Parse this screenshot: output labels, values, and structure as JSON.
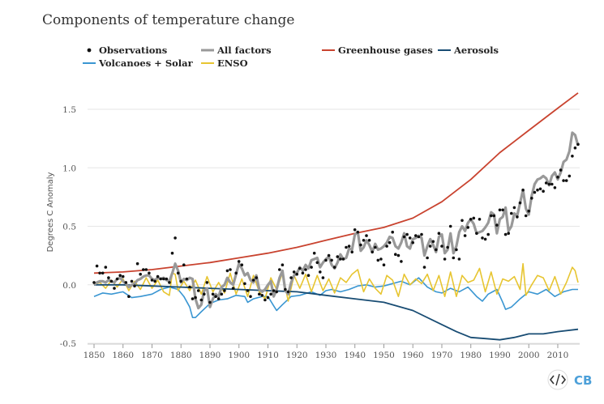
{
  "title": "Components of temperature change",
  "chart_data": {
    "type": "line",
    "title": "Components of temperature change",
    "ylabel": "Degrees C Anomaly",
    "xlabel": "",
    "xlim": [
      1850,
      2017
    ],
    "ylim": [
      -0.5,
      1.65
    ],
    "x_ticks": [
      1850,
      1860,
      1870,
      1880,
      1890,
      1900,
      1910,
      1920,
      1930,
      1940,
      1950,
      1960,
      1970,
      1980,
      1990,
      2000,
      2010
    ],
    "y_ticks": [
      -0.5,
      0.0,
      0.5,
      1.0,
      1.5
    ],
    "y_tick_labels": [
      "-0.5",
      "0.0",
      "0.5",
      "1.0",
      "1.5"
    ],
    "grid": "horizontal",
    "legend_position": "top-left",
    "series": [
      {
        "key": "observations",
        "name": "Observations",
        "style": "dots",
        "color": "#111111",
        "x": [
          1850,
          1851,
          1852,
          1853,
          1854,
          1855,
          1856,
          1857,
          1858,
          1859,
          1860,
          1861,
          1862,
          1863,
          1864,
          1865,
          1866,
          1867,
          1868,
          1869,
          1870,
          1871,
          1872,
          1873,
          1874,
          1875,
          1876,
          1877,
          1878,
          1879,
          1880,
          1881,
          1882,
          1883,
          1884,
          1885,
          1886,
          1887,
          1888,
          1889,
          1890,
          1891,
          1892,
          1893,
          1894,
          1895,
          1896,
          1897,
          1898,
          1899,
          1900,
          1901,
          1902,
          1903,
          1904,
          1905,
          1906,
          1907,
          1908,
          1909,
          1910,
          1911,
          1912,
          1913,
          1914,
          1915,
          1916,
          1917,
          1918,
          1919,
          1920,
          1921,
          1922,
          1923,
          1924,
          1925,
          1926,
          1927,
          1928,
          1929,
          1930,
          1931,
          1932,
          1933,
          1934,
          1935,
          1936,
          1937,
          1938,
          1939,
          1940,
          1941,
          1942,
          1943,
          1944,
          1945,
          1946,
          1947,
          1948,
          1949,
          1950,
          1951,
          1952,
          1953,
          1954,
          1955,
          1956,
          1957,
          1958,
          1959,
          1960,
          1961,
          1962,
          1963,
          1964,
          1965,
          1966,
          1967,
          1968,
          1969,
          1970,
          1971,
          1972,
          1973,
          1974,
          1975,
          1976,
          1977,
          1978,
          1979,
          1980,
          1981,
          1982,
          1983,
          1984,
          1985,
          1986,
          1987,
          1988,
          1989,
          1990,
          1991,
          1992,
          1993,
          1994,
          1995,
          1996,
          1997,
          1998,
          1999,
          2000,
          2001,
          2002,
          2003,
          2004,
          2005,
          2006,
          2007,
          2008,
          2009,
          2010,
          2011,
          2012,
          2013,
          2014,
          2015,
          2016,
          2017
        ],
        "y": [
          0.02,
          0.16,
          0.1,
          0.1,
          0.15,
          0.06,
          0.03,
          -0.03,
          0.05,
          0.08,
          0.07,
          0.02,
          -0.1,
          0.03,
          -0.01,
          0.18,
          0.09,
          0.13,
          0.13,
          0.1,
          0.04,
          0.03,
          0.07,
          0.05,
          0.05,
          0.05,
          0.02,
          0.27,
          0.4,
          0.1,
          0.03,
          0.17,
          0.05,
          -0.02,
          -0.12,
          -0.11,
          -0.05,
          -0.13,
          -0.08,
          0.02,
          -0.15,
          -0.08,
          -0.1,
          -0.12,
          -0.08,
          -0.05,
          0.12,
          0.13,
          -0.03,
          0.1,
          0.2,
          0.17,
          0.01,
          -0.05,
          -0.1,
          0.04,
          0.06,
          -0.08,
          -0.09,
          -0.13,
          -0.11,
          -0.08,
          -0.05,
          -0.06,
          0.13,
          0.17,
          -0.04,
          -0.06,
          0.06,
          0.11,
          0.09,
          0.14,
          0.1,
          0.13,
          0.08,
          0.15,
          0.27,
          0.19,
          0.11,
          0.06,
          0.21,
          0.25,
          0.21,
          0.15,
          0.24,
          0.22,
          0.22,
          0.32,
          0.33,
          0.28,
          0.47,
          0.45,
          0.34,
          0.38,
          0.42,
          0.38,
          0.28,
          0.32,
          0.21,
          0.22,
          0.17,
          0.33,
          0.36,
          0.45,
          0.26,
          0.25,
          0.2,
          0.41,
          0.43,
          0.4,
          0.36,
          0.42,
          0.41,
          0.43,
          0.15,
          0.23,
          0.33,
          0.37,
          0.3,
          0.44,
          0.33,
          0.22,
          0.32,
          0.5,
          0.23,
          0.3,
          0.22,
          0.55,
          0.42,
          0.49,
          0.56,
          0.57,
          0.44,
          0.56,
          0.4,
          0.39,
          0.43,
          0.59,
          0.59,
          0.51,
          0.64,
          0.64,
          0.43,
          0.44,
          0.61,
          0.66,
          0.58,
          0.7,
          0.81,
          0.59,
          0.63,
          0.74,
          0.79,
          0.81,
          0.82,
          0.8,
          0.87,
          0.86,
          0.86,
          0.83,
          0.92,
          0.98,
          0.89,
          0.89,
          0.93,
          1.1,
          1.17,
          1.2
        ]
      },
      {
        "key": "all_factors",
        "name": "All factors",
        "style": "line",
        "color": "#999999",
        "x": [
          1850,
          1851,
          1852,
          1853,
          1854,
          1855,
          1856,
          1857,
          1858,
          1859,
          1860,
          1861,
          1862,
          1863,
          1864,
          1865,
          1866,
          1867,
          1868,
          1869,
          1870,
          1871,
          1872,
          1873,
          1874,
          1875,
          1876,
          1877,
          1878,
          1879,
          1880,
          1881,
          1882,
          1883,
          1884,
          1885,
          1886,
          1887,
          1888,
          1889,
          1890,
          1891,
          1892,
          1893,
          1894,
          1895,
          1896,
          1897,
          1898,
          1899,
          1900,
          1901,
          1902,
          1903,
          1904,
          1905,
          1906,
          1907,
          1908,
          1909,
          1910,
          1911,
          1912,
          1913,
          1914,
          1915,
          1916,
          1917,
          1918,
          1919,
          1920,
          1921,
          1922,
          1923,
          1924,
          1925,
          1926,
          1927,
          1928,
          1929,
          1930,
          1931,
          1932,
          1933,
          1934,
          1935,
          1936,
          1937,
          1938,
          1939,
          1940,
          1941,
          1942,
          1943,
          1944,
          1945,
          1946,
          1947,
          1948,
          1949,
          1950,
          1951,
          1952,
          1953,
          1954,
          1955,
          1956,
          1957,
          1958,
          1959,
          1960,
          1961,
          1962,
          1963,
          1964,
          1965,
          1966,
          1967,
          1968,
          1969,
          1970,
          1971,
          1972,
          1973,
          1974,
          1975,
          1976,
          1977,
          1978,
          1979,
          1980,
          1981,
          1982,
          1983,
          1984,
          1985,
          1986,
          1987,
          1988,
          1989,
          1990,
          1991,
          1992,
          1993,
          1994,
          1995,
          1996,
          1997,
          1998,
          1999,
          2000,
          2001,
          2002,
          2003,
          2004,
          2005,
          2006,
          2007,
          2008,
          2009,
          2010,
          2011,
          2012,
          2013,
          2014,
          2015,
          2016,
          2017
        ],
        "y": [
          0.0,
          0.02,
          0.03,
          0.03,
          0.02,
          0.04,
          0.03,
          0.02,
          0.05,
          0.06,
          0.03,
          0.01,
          -0.02,
          0.0,
          0.01,
          0.04,
          0.05,
          0.07,
          0.08,
          0.08,
          0.05,
          0.04,
          0.06,
          0.05,
          0.06,
          0.04,
          0.03,
          0.1,
          0.18,
          0.12,
          0.02,
          0.05,
          0.04,
          0.06,
          0.05,
          -0.12,
          -0.2,
          -0.17,
          -0.05,
          -0.03,
          -0.19,
          -0.12,
          -0.08,
          -0.1,
          -0.02,
          0.0,
          0.06,
          0.02,
          0.0,
          0.09,
          0.18,
          0.14,
          0.08,
          0.1,
          0.04,
          0.02,
          0.08,
          -0.04,
          -0.06,
          -0.04,
          0.0,
          0.03,
          -0.1,
          -0.04,
          0.06,
          0.12,
          -0.05,
          -0.08,
          0.02,
          0.08,
          0.1,
          0.15,
          0.12,
          0.17,
          0.14,
          0.21,
          0.22,
          0.23,
          0.15,
          0.19,
          0.22,
          0.24,
          0.17,
          0.14,
          0.19,
          0.26,
          0.22,
          0.23,
          0.31,
          0.3,
          0.43,
          0.45,
          0.29,
          0.32,
          0.38,
          0.34,
          0.28,
          0.35,
          0.3,
          0.31,
          0.33,
          0.36,
          0.41,
          0.4,
          0.33,
          0.31,
          0.36,
          0.44,
          0.33,
          0.31,
          0.39,
          0.4,
          0.42,
          0.4,
          0.25,
          0.33,
          0.39,
          0.34,
          0.28,
          0.41,
          0.43,
          0.27,
          0.3,
          0.44,
          0.27,
          0.33,
          0.45,
          0.5,
          0.46,
          0.53,
          0.56,
          0.52,
          0.44,
          0.45,
          0.46,
          0.49,
          0.53,
          0.62,
          0.6,
          0.44,
          0.56,
          0.58,
          0.66,
          0.46,
          0.5,
          0.61,
          0.59,
          0.7,
          0.81,
          0.65,
          0.6,
          0.76,
          0.86,
          0.9,
          0.91,
          0.93,
          0.91,
          0.85,
          0.93,
          0.96,
          0.9,
          0.96,
          1.05,
          1.07,
          1.14,
          1.3,
          1.28,
          1.19
        ]
      },
      {
        "key": "greenhouse",
        "name": "Greenhouse gases",
        "style": "line",
        "color": "#c9432f",
        "x": [
          1850,
          1860,
          1870,
          1880,
          1890,
          1900,
          1910,
          1920,
          1930,
          1940,
          1950,
          1960,
          1970,
          1980,
          1990,
          2000,
          2010,
          2017
        ],
        "y": [
          0.1,
          0.11,
          0.13,
          0.16,
          0.19,
          0.23,
          0.27,
          0.32,
          0.38,
          0.44,
          0.49,
          0.57,
          0.71,
          0.9,
          1.13,
          1.32,
          1.51,
          1.64
        ]
      },
      {
        "key": "aerosols",
        "name": "Aerosols",
        "style": "line",
        "color": "#184c73",
        "x": [
          1850,
          1860,
          1870,
          1880,
          1890,
          1900,
          1910,
          1920,
          1930,
          1940,
          1950,
          1960,
          1970,
          1975,
          1980,
          1985,
          1990,
          1995,
          2000,
          2005,
          2010,
          2017
        ],
        "y": [
          0.0,
          0.0,
          -0.01,
          -0.02,
          -0.03,
          -0.04,
          -0.05,
          -0.06,
          -0.09,
          -0.12,
          -0.15,
          -0.22,
          -0.34,
          -0.4,
          -0.45,
          -0.46,
          -0.47,
          -0.45,
          -0.42,
          -0.42,
          -0.4,
          -0.38
        ]
      },
      {
        "key": "volcanoes_solar",
        "name": "Volcanoes + Solar",
        "style": "line",
        "color": "#3a96d2",
        "x": [
          1850,
          1853,
          1856,
          1860,
          1863,
          1866,
          1870,
          1873,
          1876,
          1879,
          1881,
          1883,
          1884,
          1885,
          1887,
          1890,
          1893,
          1896,
          1899,
          1902,
          1903,
          1905,
          1908,
          1910,
          1912,
          1913,
          1915,
          1918,
          1921,
          1925,
          1928,
          1930,
          1932,
          1935,
          1938,
          1941,
          1944,
          1947,
          1950,
          1953,
          1956,
          1959,
          1962,
          1965,
          1968,
          1970,
          1973,
          1976,
          1979,
          1982,
          1984,
          1986,
          1989,
          1991,
          1992,
          1994,
          1997,
          2000,
          2003,
          2006,
          2009,
          2012,
          2015,
          2017
        ],
        "y": [
          -0.1,
          -0.07,
          -0.08,
          -0.06,
          -0.11,
          -0.1,
          -0.08,
          -0.04,
          -0.02,
          -0.04,
          -0.1,
          -0.19,
          -0.28,
          -0.28,
          -0.23,
          -0.16,
          -0.13,
          -0.12,
          -0.09,
          -0.1,
          -0.15,
          -0.12,
          -0.1,
          -0.1,
          -0.18,
          -0.22,
          -0.17,
          -0.1,
          -0.09,
          -0.06,
          -0.09,
          -0.05,
          -0.04,
          -0.06,
          -0.04,
          -0.01,
          0.0,
          -0.02,
          -0.01,
          0.01,
          0.03,
          0.0,
          0.06,
          -0.02,
          -0.06,
          -0.07,
          -0.03,
          -0.06,
          -0.02,
          -0.1,
          -0.14,
          -0.08,
          -0.04,
          -0.15,
          -0.21,
          -0.19,
          -0.12,
          -0.06,
          -0.08,
          -0.04,
          -0.1,
          -0.06,
          -0.04,
          -0.04
        ]
      },
      {
        "key": "enso",
        "name": "ENSO",
        "style": "line",
        "color": "#e7c531",
        "x": [
          1850,
          1852,
          1854,
          1856,
          1858,
          1860,
          1862,
          1864,
          1866,
          1868,
          1870,
          1872,
          1874,
          1876,
          1877,
          1878,
          1879,
          1881,
          1883,
          1885,
          1887,
          1889,
          1891,
          1893,
          1895,
          1897,
          1899,
          1901,
          1903,
          1905,
          1907,
          1909,
          1911,
          1913,
          1915,
          1917,
          1919,
          1921,
          1923,
          1925,
          1927,
          1929,
          1931,
          1933,
          1935,
          1937,
          1939,
          1941,
          1943,
          1945,
          1947,
          1949,
          1951,
          1953,
          1955,
          1957,
          1959,
          1961,
          1963,
          1965,
          1967,
          1969,
          1971,
          1973,
          1975,
          1977,
          1979,
          1981,
          1983,
          1985,
          1987,
          1989,
          1991,
          1993,
          1995,
          1997,
          1998,
          1999,
          2001,
          2003,
          2005,
          2007,
          2009,
          2011,
          2013,
          2015,
          2016,
          2017
        ],
        "y": [
          0.0,
          0.02,
          -0.03,
          0.04,
          -0.02,
          0.05,
          -0.05,
          0.03,
          -0.04,
          0.06,
          -0.03,
          0.04,
          -0.06,
          -0.09,
          0.1,
          0.09,
          -0.05,
          0.03,
          -0.05,
          0.04,
          -0.08,
          0.07,
          -0.06,
          0.02,
          -0.07,
          0.1,
          -0.08,
          0.05,
          -0.1,
          0.08,
          -0.06,
          -0.12,
          0.06,
          -0.04,
          0.1,
          -0.14,
          0.08,
          -0.03,
          0.09,
          -0.06,
          0.08,
          -0.05,
          0.05,
          -0.07,
          0.06,
          0.02,
          0.09,
          0.13,
          -0.06,
          0.05,
          -0.03,
          -0.08,
          0.08,
          0.04,
          -0.1,
          0.09,
          0.0,
          0.05,
          0.01,
          0.09,
          -0.05,
          0.08,
          -0.1,
          0.11,
          -0.1,
          0.08,
          0.02,
          0.04,
          0.14,
          -0.06,
          0.11,
          -0.08,
          0.05,
          0.03,
          0.07,
          -0.04,
          0.18,
          -0.09,
          0.0,
          0.08,
          0.06,
          -0.05,
          0.07,
          -0.08,
          0.02,
          0.15,
          0.12,
          0.02
        ]
      }
    ],
    "legend": [
      {
        "series_key": "observations",
        "label": "Observations",
        "symbol": "dot"
      },
      {
        "series_key": "all_factors",
        "label": "All factors",
        "symbol": "line"
      },
      {
        "series_key": "greenhouse",
        "label": "Greenhouse gases",
        "symbol": "line"
      },
      {
        "series_key": "aerosols",
        "label": "Aerosols",
        "symbol": "line"
      },
      {
        "series_key": "volcanoes_solar",
        "label": "Volcanoes + Solar",
        "symbol": "line"
      },
      {
        "series_key": "enso",
        "label": "ENSO",
        "symbol": "line"
      }
    ]
  },
  "branding": {
    "embed_icon": "code-embed-icon",
    "logo_text": "CB",
    "accent_color": "#4da0d9"
  }
}
